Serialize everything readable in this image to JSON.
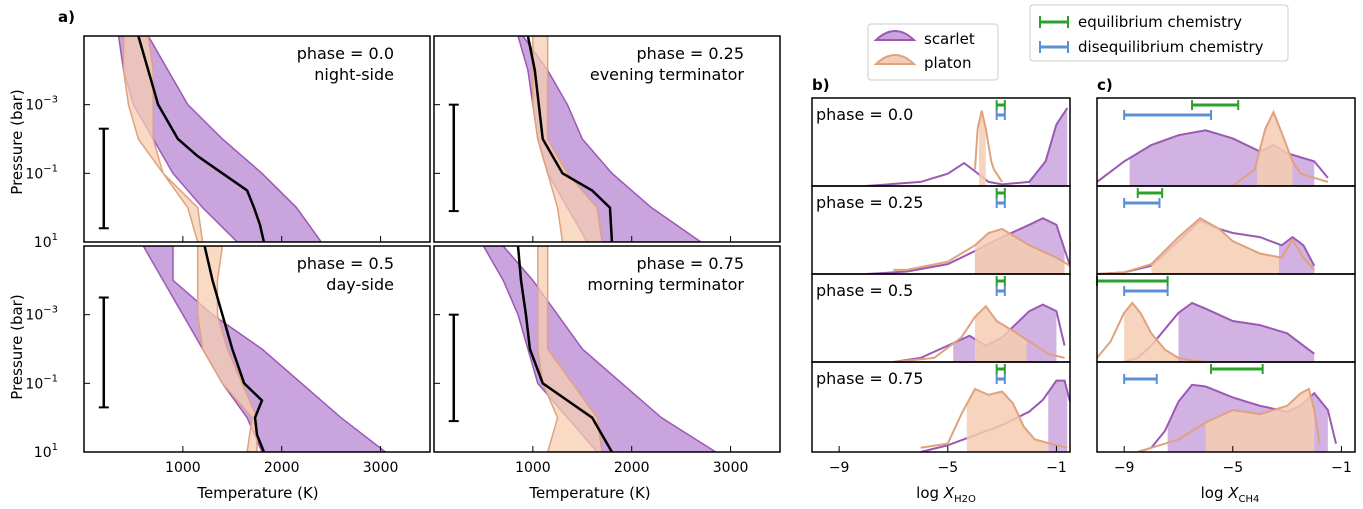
{
  "figure": {
    "panel_labels": {
      "a": "a)",
      "b": "b)",
      "c": "c)"
    }
  },
  "legend_retrieval": [
    {
      "label": "scarlet",
      "color": "#9b59b6"
    },
    {
      "label": "platon",
      "color": "#e8a87c"
    }
  ],
  "legend_chemistry": [
    {
      "label": "equilibrium chemistry",
      "color": "#2ca02c"
    },
    {
      "label": "disequilibrium chemistry",
      "color": "#5b8fd6"
    }
  ],
  "colors": {
    "scarlet_fill": "#c9a4dd",
    "scarlet_line": "#9b59b6",
    "platon_fill": "#f6cdb2",
    "platon_line": "#e0a27e",
    "overlap_fill": "#d09196",
    "truth_line": "#000000",
    "equilibrium": "#2ca02c",
    "disequilibrium": "#5b8fd6"
  },
  "chart_data": [
    {
      "type": "area",
      "id": "panel_a",
      "xlabel": "Temperature (K)",
      "ylabel": "Pressure (bar)",
      "xlim": [
        0,
        3500
      ],
      "ylim_log10_bar": [
        -5,
        1
      ],
      "y_scale": "log",
      "y_inverted": true,
      "x_ticks": [
        "1000",
        "2000",
        "3000"
      ],
      "y_ticks": [
        {
          "label": "10",
          "exp": "−3"
        },
        {
          "label": "10",
          "exp": "−1"
        },
        {
          "label": "10",
          "exp": "1"
        }
      ],
      "subplots": [
        {
          "phase_label": "phase = 0.0",
          "sub_label": "night-side",
          "scarlet_band": {
            "logP": [
              -5,
              -4,
              -3,
              -2,
              -1,
              0,
              1
            ],
            "T_low": [
              350,
              400,
              500,
              700,
              900,
              1200,
              1550
            ],
            "T_high": [
              650,
              850,
              1050,
              1400,
              1800,
              2150,
              2400
            ]
          },
          "platon_band": {
            "logP": [
              -5,
              -4,
              -3,
              -2,
              -1,
              0,
              1
            ],
            "T_low": [
              400,
              400,
              450,
              550,
              800,
              1050,
              1150
            ],
            "T_high": [
              650,
              700,
              700,
              700,
              800,
              1150,
              1200
            ]
          },
          "truth": {
            "logP": [
              -5,
              -4,
              -3,
              -2,
              -1.5,
              -1,
              -0.5,
              0,
              0.5,
              1
            ],
            "T": [
              550,
              650,
              750,
              950,
              1150,
              1400,
              1650,
              1720,
              1780,
              1820
            ]
          },
          "error_bar_logP": [
            -2.3,
            0.6
          ]
        },
        {
          "phase_label": "phase = 0.25",
          "sub_label": "evening terminator",
          "scarlet_band": {
            "logP": [
              -5,
              -4,
              -3,
              -2,
              -1,
              0,
              1
            ],
            "T_low": [
              850,
              950,
              1000,
              1050,
              1150,
              1350,
              1550
            ],
            "T_high": [
              900,
              1150,
              1350,
              1500,
              1800,
              2200,
              2700
            ]
          },
          "platon_band": {
            "logP": [
              -5,
              -4,
              -3,
              -2,
              -1,
              0,
              1
            ],
            "T_low": [
              1000,
              1000,
              1000,
              1050,
              1150,
              1250,
              1300
            ],
            "T_high": [
              1150,
              1150,
              1150,
              1150,
              1350,
              1650,
              1700
            ]
          },
          "truth": {
            "logP": [
              -5,
              -4,
              -3,
              -2,
              -1,
              -0.5,
              0,
              0.5,
              1
            ],
            "T": [
              950,
              1020,
              1060,
              1100,
              1300,
              1600,
              1780,
              1790,
              1800
            ]
          },
          "error_bar_logP": [
            -3.0,
            0.1
          ]
        },
        {
          "phase_label": "phase = 0.5",
          "sub_label": "day-side",
          "scarlet_band": {
            "logP": [
              -5,
              -4,
              -3,
              -2,
              -1,
              0,
              1
            ],
            "T_low": [
              600,
              800,
              1000,
              1200,
              1400,
              1650,
              1800
            ],
            "T_high": [
              900,
              900,
              1300,
              1800,
              2200,
              2600,
              3050
            ]
          },
          "platon_band": {
            "logP": [
              -5,
              -4,
              -3,
              -2,
              -1,
              0,
              1
            ],
            "T_low": [
              1150,
              1150,
              1150,
              1200,
              1400,
              1700,
              1650
            ],
            "T_high": [
              1400,
              1350,
              1350,
              1450,
              1600,
              1750,
              1750
            ]
          },
          "truth": {
            "logP": [
              -5,
              -4,
              -3,
              -2,
              -1,
              -0.5,
              0,
              0.5,
              1
            ],
            "T": [
              1220,
              1300,
              1400,
              1500,
              1620,
              1800,
              1730,
              1750,
              1820
            ]
          },
          "error_bar_logP": [
            -3.5,
            -0.3
          ]
        },
        {
          "phase_label": "phase = 0.75",
          "sub_label": "morning terminator",
          "scarlet_band": {
            "logP": [
              -5,
              -4,
              -3,
              -2,
              -1,
              0,
              1
            ],
            "T_low": [
              500,
              700,
              850,
              950,
              1050,
              1350,
              1650
            ],
            "T_high": [
              700,
              1000,
              1250,
              1500,
              1900,
              2300,
              2850
            ]
          },
          "platon_band": {
            "logP": [
              -5,
              -4,
              -3,
              -2,
              -1,
              0,
              1
            ],
            "T_low": [
              1050,
              1050,
              1050,
              1050,
              1100,
              1250,
              1150
            ],
            "T_high": [
              1150,
              1150,
              1150,
              1150,
              1400,
              1650,
              1700
            ]
          },
          "truth": {
            "logP": [
              -5,
              -4,
              -3,
              -2,
              -1,
              -0.5,
              0,
              0.5,
              1
            ],
            "T": [
              850,
              880,
              930,
              970,
              1100,
              1350,
              1600,
              1700,
              1800
            ]
          },
          "error_bar_logP": [
            -3.0,
            0.1
          ]
        }
      ]
    },
    {
      "type": "area",
      "id": "panel_b",
      "xlabel": "log ",
      "xlabel_var": "X",
      "xlabel_sub": "H2O",
      "xlim": [
        -10,
        -0.5
      ],
      "x_ticks": [
        "−9",
        "−5",
        "−1"
      ],
      "rows": [
        {
          "phase_label": "phase = 0.0",
          "scarlet": {
            "x": [
              -8,
              -6,
              -5,
              -4.4,
              -4,
              -3.5,
              -3,
              -2,
              -1.4,
              -1,
              -0.6
            ],
            "y": [
              0,
              0.05,
              0.15,
              0.28,
              0.18,
              0.05,
              0.02,
              0.05,
              0.3,
              0.75,
              0.95
            ],
            "fill": [
              -2.0,
              -0.6
            ]
          },
          "platon": {
            "x": [
              -4,
              -3.9,
              -3.75,
              -3.6,
              -3.4,
              -3.3,
              -3.1,
              -3.0
            ],
            "y": [
              0.2,
              0.7,
              0.92,
              0.7,
              0.3,
              0.2,
              0.1,
              0.05
            ],
            "fill": [
              -3.85,
              -3.6
            ]
          },
          "eq": [
            -3.2,
            -2.9
          ],
          "diseq": [
            -3.2,
            -2.9
          ]
        },
        {
          "phase_label": "phase = 0.25",
          "scarlet": {
            "x": [
              -8,
              -6.5,
              -5,
              -4,
              -3,
              -2,
              -1.5,
              -1,
              -0.5
            ],
            "y": [
              0,
              0.03,
              0.12,
              0.28,
              0.45,
              0.6,
              0.68,
              0.6,
              0.1
            ],
            "fill": [
              -4.0,
              -0.7
            ]
          },
          "platon": {
            "x": [
              -7,
              -6.5,
              -5,
              -4,
              -3.5,
              -3,
              -2,
              -1,
              -0.5
            ],
            "y": [
              0.05,
              0.05,
              0.15,
              0.35,
              0.5,
              0.55,
              0.35,
              0.2,
              0.1
            ],
            "fill": [
              -4.0,
              -0.7
            ]
          },
          "eq": [
            -3.2,
            -2.9
          ],
          "diseq": [
            -3.2,
            -2.9
          ]
        },
        {
          "phase_label": "phase = 0.5",
          "scarlet": {
            "x": [
              -7,
              -6,
              -5,
              -4.2,
              -3.6,
              -3,
              -2,
              -1.5,
              -1,
              -0.7
            ],
            "y": [
              0,
              0.05,
              0.2,
              0.32,
              0.2,
              0.3,
              0.62,
              0.7,
              0.62,
              0.2
            ],
            "fill": [
              -4.8,
              -1.0
            ]
          },
          "platon": {
            "x": [
              -7,
              -5.5,
              -4.5,
              -4,
              -3.6,
              -3.2,
              -2.6,
              -2,
              -1.3,
              -0.7
            ],
            "y": [
              0,
              0.05,
              0.3,
              0.55,
              0.68,
              0.5,
              0.38,
              0.25,
              0.1,
              0.05
            ],
            "fill": [
              -4.0,
              -2.1
            ]
          },
          "eq": [
            -3.2,
            -2.9
          ],
          "diseq": [
            -3.2,
            -2.9
          ]
        },
        {
          "phase_label": "phase = 0.75",
          "scarlet": {
            "x": [
              -6,
              -5,
              -4,
              -3,
              -2,
              -1.5,
              -1,
              -0.7,
              -0.5
            ],
            "y": [
              0,
              0.08,
              0.2,
              0.32,
              0.48,
              0.62,
              0.85,
              0.85,
              0.6
            ],
            "fill": [
              -1.3,
              -0.6
            ]
          },
          "platon": {
            "x": [
              -6,
              -5,
              -4.5,
              -4,
              -3.5,
              -3,
              -2.6,
              -2.2,
              -1.8,
              -1,
              -0.6
            ],
            "y": [
              0.05,
              0.1,
              0.45,
              0.75,
              0.68,
              0.72,
              0.58,
              0.3,
              0.15,
              0.08,
              0.05
            ],
            "fill": [
              -4.3,
              -1.3
            ]
          },
          "eq": [
            -3.2,
            -2.9
          ],
          "diseq": [
            -3.2,
            -2.9
          ]
        }
      ]
    },
    {
      "type": "area",
      "id": "panel_c",
      "xlabel": "log ",
      "xlabel_var": "X",
      "xlabel_sub": "CH4",
      "xlim": [
        -10,
        -0.5
      ],
      "x_ticks": [
        "−9",
        "−5",
        "−1"
      ],
      "rows": [
        {
          "phase_label": "",
          "scarlet": {
            "x": [
              -10,
              -9,
              -8,
              -7,
              -6,
              -5,
              -4,
              -3.5,
              -3,
              -2,
              -1.5
            ],
            "y": [
              0.05,
              0.3,
              0.5,
              0.62,
              0.68,
              0.58,
              0.42,
              0.5,
              0.4,
              0.3,
              0.1
            ],
            "fill": [
              -8.8,
              -2.0
            ]
          },
          "platon": {
            "x": [
              -5,
              -4.2,
              -3.8,
              -3.5,
              -3.2,
              -2.8,
              -2.5,
              -2,
              -1.5
            ],
            "y": [
              0,
              0.2,
              0.7,
              0.9,
              0.65,
              0.3,
              0.15,
              0.1,
              0.05
            ],
            "fill": [
              -4.1,
              -2.8
            ]
          },
          "eq": [
            -6.5,
            -4.8
          ],
          "diseq": [
            -9.0,
            -5.8
          ]
        },
        {
          "phase_label": "",
          "scarlet": {
            "x": [
              -10,
              -9,
              -8,
              -7,
              -6.2,
              -5.5,
              -5,
              -4,
              -3.2,
              -2.8,
              -2.4,
              -2
            ],
            "y": [
              0,
              0.02,
              0.1,
              0.4,
              0.65,
              0.55,
              0.5,
              0.45,
              0.35,
              0.45,
              0.35,
              0.1
            ],
            "fill": [
              -3.3,
              -2.0
            ]
          },
          "platon": {
            "x": [
              -10,
              -9,
              -8,
              -7,
              -6.2,
              -5.5,
              -5,
              -4,
              -3.2,
              -2.8,
              -2.4,
              -2
            ],
            "y": [
              0,
              0.02,
              0.12,
              0.45,
              0.68,
              0.55,
              0.4,
              0.25,
              0.2,
              0.42,
              0.2,
              0.05
            ],
            "fill": [
              -8.0,
              -3.3
            ]
          },
          "eq": [
            -8.5,
            -7.6
          ],
          "diseq": [
            -9.0,
            -7.7
          ]
        },
        {
          "phase_label": "",
          "scarlet": {
            "x": [
              -9,
              -8.5,
              -8,
              -7.5,
              -7,
              -6.5,
              -6,
              -5,
              -4,
              -3,
              -2
            ],
            "y": [
              0,
              0.05,
              0.2,
              0.4,
              0.6,
              0.72,
              0.65,
              0.5,
              0.45,
              0.35,
              0.1
            ],
            "fill": [
              -7.0,
              -2.0
            ]
          },
          "platon": {
            "x": [
              -10,
              -9.5,
              -9,
              -8.7,
              -8.4,
              -8,
              -7.5,
              -7,
              -6.5,
              -6
            ],
            "y": [
              0.05,
              0.25,
              0.6,
              0.72,
              0.6,
              0.35,
              0.15,
              0.05,
              0.02,
              0
            ],
            "fill": [
              -9.0,
              -7.0
            ]
          },
          "eq": [
            -10.0,
            -7.4
          ],
          "diseq": [
            -9.0,
            -7.4
          ]
        },
        {
          "phase_label": "",
          "scarlet": {
            "x": [
              -8.5,
              -8,
              -7.5,
              -7,
              -6.5,
              -6,
              -5,
              -4,
              -3,
              -2.5,
              -2,
              -1.5,
              -1.2
            ],
            "y": [
              0,
              0.05,
              0.25,
              0.6,
              0.8,
              0.78,
              0.65,
              0.55,
              0.48,
              0.55,
              0.7,
              0.5,
              0.1
            ],
            "fill": [
              -7.4,
              -1.5
            ]
          },
          "platon": {
            "x": [
              -8.5,
              -8,
              -7,
              -6,
              -5,
              -4,
              -3,
              -2.5,
              -2.2,
              -2,
              -1.8
            ],
            "y": [
              0,
              0.05,
              0.15,
              0.35,
              0.5,
              0.45,
              0.55,
              0.7,
              0.75,
              0.5,
              0.1
            ],
            "fill": [
              -6.0,
              -2.0
            ]
          },
          "eq": [
            -5.8,
            -3.9
          ],
          "diseq": [
            -9.0,
            -7.8
          ]
        }
      ]
    }
  ]
}
